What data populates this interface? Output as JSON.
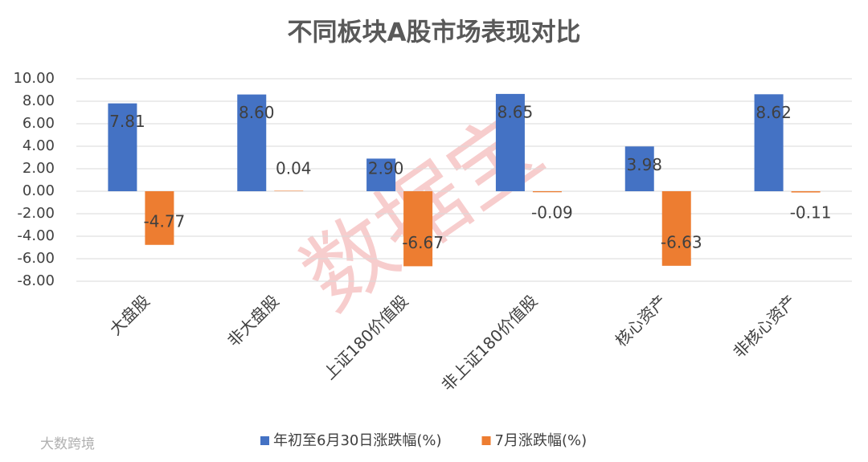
{
  "chart_data": {
    "type": "bar",
    "title": "不同板块A股市场表现对比",
    "categories": [
      "大盘股",
      "非大盘股",
      "上证180价值股",
      "非上证180价值股",
      "核心资产",
      "非核心资产"
    ],
    "series": [
      {
        "name": "年初至6月30日涨跌幅(%)",
        "color": "#4472c4",
        "values": [
          7.81,
          8.6,
          2.9,
          8.65,
          3.98,
          8.62
        ],
        "value_labels": [
          "7.81",
          "8.60",
          "2.90",
          "8.65",
          "3.98",
          "8.62"
        ]
      },
      {
        "name": "7月涨跌幅(%)",
        "color": "#ed7d31",
        "values": [
          -4.77,
          0.04,
          -6.67,
          -0.09,
          -6.63,
          -0.11
        ],
        "value_labels": [
          "-4.77",
          "0.04",
          "-6.67",
          "-0.09",
          "-6.63",
          "-0.11"
        ]
      }
    ],
    "ylim": [
      -8,
      10
    ],
    "yticks": [
      {
        "value": -8,
        "label": "-8.00"
      },
      {
        "value": -6,
        "label": "-6.00"
      },
      {
        "value": -4,
        "label": "-4.00"
      },
      {
        "value": -2,
        "label": "-2.00"
      },
      {
        "value": 0,
        "label": "0.00"
      },
      {
        "value": 2,
        "label": "2.00"
      },
      {
        "value": 4,
        "label": "4.00"
      },
      {
        "value": 6,
        "label": "6.00"
      },
      {
        "value": 8,
        "label": "8.00"
      },
      {
        "value": 10,
        "label": "10.00"
      }
    ],
    "grid": true,
    "legend": "bottom",
    "watermark": "数据宝",
    "source": "大数跨境"
  }
}
